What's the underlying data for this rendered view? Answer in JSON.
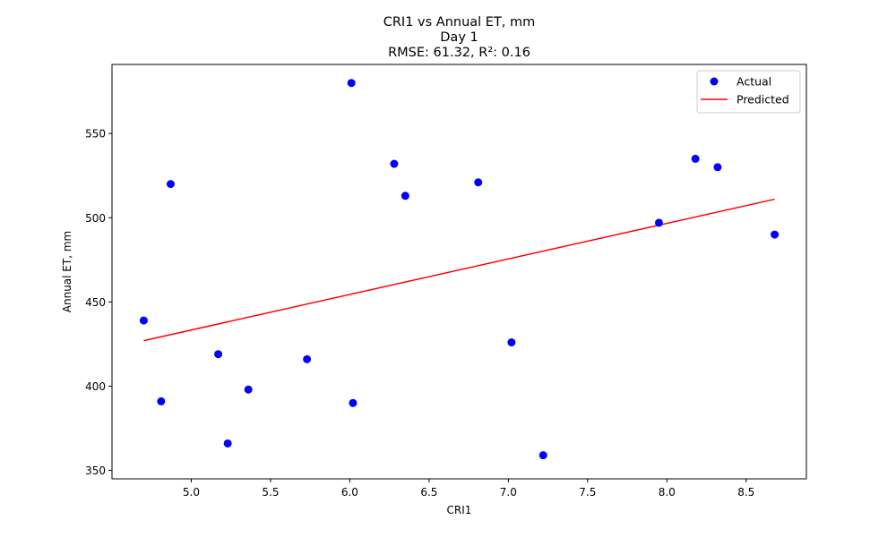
{
  "chart_data": {
    "type": "scatter",
    "title": "CRI1 vs Annual ET, mm",
    "subtitle": "Day 1",
    "metrics": "RMSE: 61.32, R²: 0.16",
    "xlabel": "CRI1",
    "ylabel": "Annual ET, mm",
    "xlim": [
      4.5,
      8.88
    ],
    "ylim": [
      345,
      591
    ],
    "xticks": [
      5.0,
      5.5,
      6.0,
      6.5,
      7.0,
      7.5,
      8.0,
      8.5
    ],
    "xtick_labels": [
      "5.0",
      "5.5",
      "6.0",
      "6.5",
      "7.0",
      "7.5",
      "8.0",
      "8.5"
    ],
    "yticks": [
      350,
      400,
      450,
      500,
      550
    ],
    "ytick_labels": [
      "350",
      "400",
      "450",
      "500",
      "550"
    ],
    "grid": false,
    "legend": "top-right",
    "series": [
      {
        "name": "Actual",
        "kind": "scatter",
        "color": "#0000ff",
        "points": [
          {
            "x": 4.7,
            "y": 439
          },
          {
            "x": 4.81,
            "y": 391
          },
          {
            "x": 4.87,
            "y": 520
          },
          {
            "x": 5.17,
            "y": 419
          },
          {
            "x": 5.23,
            "y": 366
          },
          {
            "x": 5.36,
            "y": 398
          },
          {
            "x": 5.73,
            "y": 416
          },
          {
            "x": 6.01,
            "y": 580
          },
          {
            "x": 6.02,
            "y": 390
          },
          {
            "x": 6.28,
            "y": 532
          },
          {
            "x": 6.35,
            "y": 513
          },
          {
            "x": 6.81,
            "y": 521
          },
          {
            "x": 7.02,
            "y": 426
          },
          {
            "x": 7.22,
            "y": 359
          },
          {
            "x": 7.95,
            "y": 497
          },
          {
            "x": 8.18,
            "y": 535
          },
          {
            "x": 8.32,
            "y": 530
          },
          {
            "x": 8.68,
            "y": 490
          }
        ]
      },
      {
        "name": "Predicted",
        "kind": "line",
        "color": "#ff0000",
        "points": [
          {
            "x": 4.7,
            "y": 427
          },
          {
            "x": 8.68,
            "y": 511
          }
        ]
      }
    ]
  }
}
